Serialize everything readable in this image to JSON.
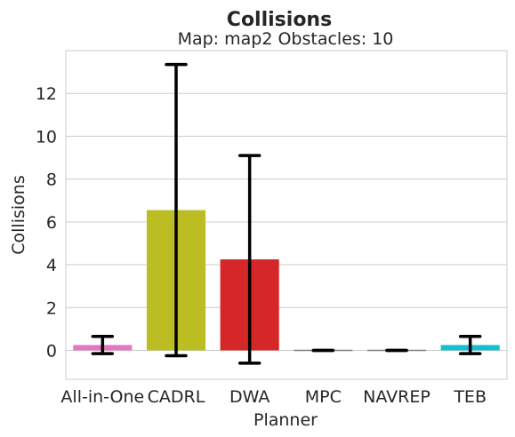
{
  "chart_data": {
    "type": "bar",
    "title": "Collisions",
    "subtitle": "Map: map2 Obstacles: 10",
    "xlabel": "Planner",
    "ylabel": "Collisions",
    "categories": [
      "All-in-One",
      "CADRL",
      "DWA",
      "MPC",
      "NAVREP",
      "TEB"
    ],
    "values": [
      0.25,
      6.55,
      4.25,
      0.0,
      0.0,
      0.25
    ],
    "error_low": [
      -0.15,
      -0.25,
      -0.6,
      0.0,
      0.0,
      -0.15
    ],
    "error_high": [
      0.65,
      13.35,
      9.1,
      0.0,
      0.0,
      0.65
    ],
    "colors": [
      "#e377c2",
      "#bcbd22",
      "#d62728",
      "#7f7f7f",
      "#7f7f7f",
      "#17becf"
    ],
    "ylim": [
      -1.35,
      14.0
    ],
    "yticks": [
      0,
      2,
      4,
      6,
      8,
      10,
      12
    ],
    "grid": true
  }
}
